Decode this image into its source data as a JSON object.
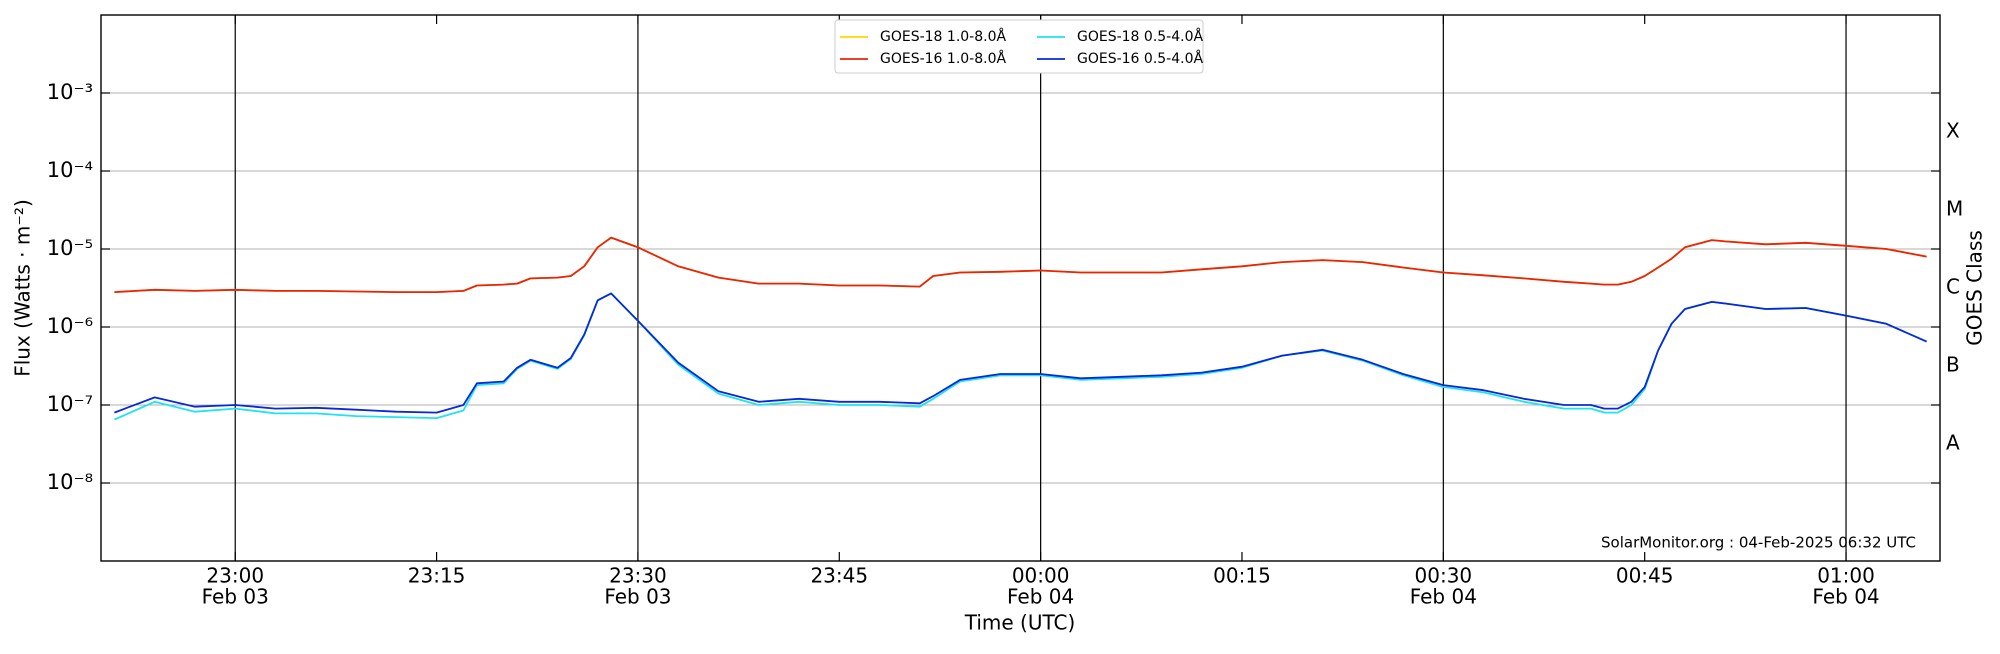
{
  "chart_data": {
    "type": "line",
    "xlabel": "Time (UTC)",
    "ylabel": "Flux (Watts · m⁻²)",
    "y2label": "GOES Class",
    "annotation": "SolarMonitor.org : 04-Feb-2025 06:32 UTC",
    "log_y": true,
    "grid": true,
    "legend": "upper center",
    "x": [
      "22:51",
      "22:54",
      "22:57",
      "23:00",
      "23:03",
      "23:06",
      "23:09",
      "23:12",
      "23:15",
      "23:17",
      "23:18",
      "23:20",
      "23:21",
      "23:22",
      "23:24",
      "23:25",
      "23:26",
      "23:27",
      "23:28",
      "23:30",
      "23:33",
      "23:36",
      "23:39",
      "23:42",
      "23:45",
      "23:48",
      "23:51",
      "23:52",
      "23:54",
      "23:57",
      "00:00",
      "00:03",
      "00:06",
      "00:09",
      "00:12",
      "00:15",
      "00:18",
      "00:21",
      "00:24",
      "00:27",
      "00:30",
      "00:33",
      "00:36",
      "00:39",
      "00:41",
      "00:42",
      "00:43",
      "00:44",
      "00:45",
      "00:46",
      "00:47",
      "00:48",
      "00:50",
      "00:51",
      "00:54",
      "00:57",
      "01:00",
      "01:03",
      "01:06"
    ],
    "series": [
      {
        "name": "GOES-18 1.0-8.0Å",
        "color": "#ffd700",
        "values": [
          2.8e-06,
          3e-06,
          2.9e-06,
          3e-06,
          2.9e-06,
          2.9e-06,
          2.85e-06,
          2.8e-06,
          2.8e-06,
          2.9e-06,
          3.4e-06,
          3.5e-06,
          3.6e-06,
          4.2e-06,
          4.3e-06,
          4.5e-06,
          6e-06,
          1.05e-05,
          1.4e-05,
          1.05e-05,
          6e-06,
          4.3e-06,
          3.6e-06,
          3.6e-06,
          3.4e-06,
          3.4e-06,
          3.3e-06,
          4.5e-06,
          5e-06,
          5.1e-06,
          5.3e-06,
          5e-06,
          5e-06,
          5e-06,
          5.5e-06,
          6e-06,
          6.8e-06,
          7.2e-06,
          6.8e-06,
          5.8e-06,
          5e-06,
          4.6e-06,
          4.2e-06,
          3.8e-06,
          3.6e-06,
          3.5e-06,
          3.5e-06,
          3.8e-06,
          4.5e-06,
          5.8e-06,
          7.5e-06,
          1.05e-05,
          1.3e-05,
          1.25e-05,
          1.15e-05,
          1.2e-05,
          1.1e-05,
          1e-05,
          8e-06
        ]
      },
      {
        "name": "GOES-16 1.0-8.0Å",
        "color": "#e8250c",
        "values": [
          2.8e-06,
          3e-06,
          2.9e-06,
          3e-06,
          2.9e-06,
          2.9e-06,
          2.85e-06,
          2.8e-06,
          2.8e-06,
          2.9e-06,
          3.4e-06,
          3.5e-06,
          3.6e-06,
          4.2e-06,
          4.3e-06,
          4.5e-06,
          6e-06,
          1.05e-05,
          1.4e-05,
          1.05e-05,
          6e-06,
          4.3e-06,
          3.6e-06,
          3.6e-06,
          3.4e-06,
          3.4e-06,
          3.3e-06,
          4.5e-06,
          5e-06,
          5.1e-06,
          5.3e-06,
          5e-06,
          5e-06,
          5e-06,
          5.5e-06,
          6e-06,
          6.8e-06,
          7.2e-06,
          6.8e-06,
          5.8e-06,
          5e-06,
          4.6e-06,
          4.2e-06,
          3.8e-06,
          3.6e-06,
          3.5e-06,
          3.5e-06,
          3.8e-06,
          4.5e-06,
          5.8e-06,
          7.5e-06,
          1.05e-05,
          1.3e-05,
          1.25e-05,
          1.15e-05,
          1.2e-05,
          1.1e-05,
          1e-05,
          8e-06
        ]
      },
      {
        "name": "GOES-18 0.5-4.0Å",
        "color": "#1ee3f0",
        "values": [
          6.5e-08,
          1.1e-07,
          8.2e-08,
          9e-08,
          7.8e-08,
          7.8e-08,
          7.2e-08,
          7e-08,
          6.8e-08,
          8.5e-08,
          1.8e-07,
          1.9e-07,
          2.9e-07,
          3.7e-07,
          2.9e-07,
          3.9e-07,
          7.8e-07,
          2.2e-06,
          2.7e-06,
          1.2e-06,
          3.3e-07,
          1.4e-07,
          1e-07,
          1.1e-07,
          1e-07,
          1e-07,
          9.5e-08,
          1.2e-07,
          2e-07,
          2.4e-07,
          2.4e-07,
          2.1e-07,
          2.2e-07,
          2.3e-07,
          2.5e-07,
          3e-07,
          4.3e-07,
          5e-07,
          3.7e-07,
          2.4e-07,
          1.7e-07,
          1.45e-07,
          1.1e-07,
          9e-08,
          9e-08,
          8e-08,
          8e-08,
          1e-07,
          1.6e-07,
          5e-07,
          1.1e-06,
          1.7e-06,
          2.1e-06,
          2e-06,
          1.7e-06,
          1.75e-06,
          1.4e-06,
          1.1e-06,
          6.5e-07
        ]
      },
      {
        "name": "GOES-16 0.5-4.0Å",
        "color": "#0a28d6",
        "values": [
          8e-08,
          1.25e-07,
          9.5e-08,
          1e-07,
          9e-08,
          9.2e-08,
          8.7e-08,
          8.2e-08,
          8e-08,
          1e-07,
          1.9e-07,
          2e-07,
          3e-07,
          3.8e-07,
          3e-07,
          4e-07,
          8e-07,
          2.2e-06,
          2.7e-06,
          1.2e-06,
          3.5e-07,
          1.5e-07,
          1.1e-07,
          1.2e-07,
          1.1e-07,
          1.1e-07,
          1.05e-07,
          1.3e-07,
          2.1e-07,
          2.5e-07,
          2.5e-07,
          2.2e-07,
          2.3e-07,
          2.4e-07,
          2.6e-07,
          3.1e-07,
          4.3e-07,
          5.1e-07,
          3.8e-07,
          2.5e-07,
          1.8e-07,
          1.55e-07,
          1.2e-07,
          1e-07,
          1e-07,
          9e-08,
          9e-08,
          1.1e-07,
          1.7e-07,
          5e-07,
          1.1e-06,
          1.7e-06,
          2.1e-06,
          2e-06,
          1.7e-06,
          1.75e-06,
          1.4e-06,
          1.1e-06,
          6.5e-07
        ]
      }
    ],
    "xlim": [
      "22:50",
      "01:07"
    ],
    "xticks": [
      "23:00",
      "23:15",
      "23:30",
      "23:45",
      "00:00",
      "00:15",
      "00:30",
      "00:45",
      "01:00"
    ],
    "xtick_dates": [
      "Feb 03",
      null,
      "Feb 03",
      null,
      "Feb 04",
      null,
      "Feb 04",
      null,
      "Feb 04"
    ],
    "vlines": [
      "23:00",
      "23:30",
      "00:00",
      "00:30",
      "01:00"
    ],
    "ylim": [
      1e-09,
      0.01
    ],
    "yticks": [
      {
        "value": 1e-08,
        "label": "10⁻⁸"
      },
      {
        "value": 1e-07,
        "label": "10⁻⁷"
      },
      {
        "value": 1e-06,
        "label": "10⁻⁶"
      },
      {
        "value": 1e-05,
        "label": "10⁻⁵"
      },
      {
        "value": 0.0001,
        "label": "10⁻⁴"
      },
      {
        "value": 0.001,
        "label": "10⁻³"
      }
    ],
    "y2lim": [
      1e-09,
      0.01
    ],
    "y2ticks": [
      {
        "value": 3.162e-08,
        "label": "A"
      },
      {
        "value": 3.162e-07,
        "label": "B"
      },
      {
        "value": 3.162e-06,
        "label": "C"
      },
      {
        "value": 3.162e-05,
        "label": "M"
      },
      {
        "value": 0.0003162,
        "label": "X"
      }
    ]
  }
}
